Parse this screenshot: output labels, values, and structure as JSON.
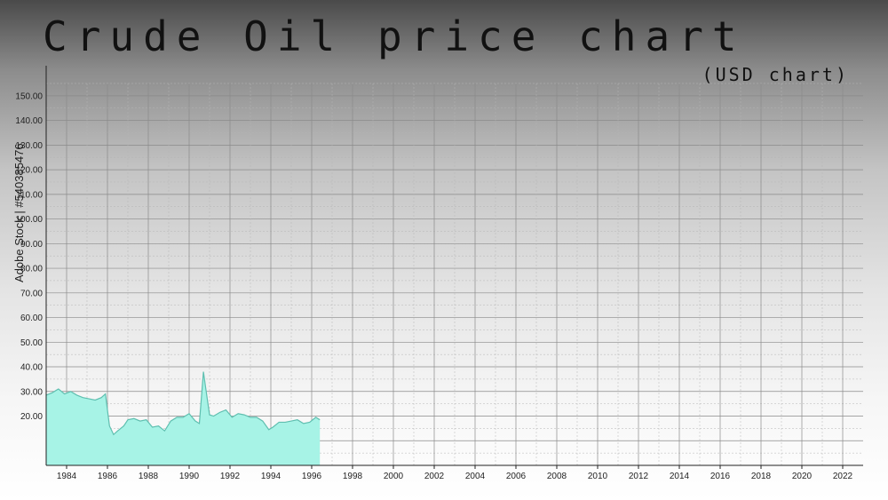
{
  "chart_data": {
    "type": "area",
    "title": "Crude Oil price chart",
    "subtitle": "(USD chart)",
    "xlabel": "",
    "ylabel": "",
    "xlim": [
      1983,
      2023
    ],
    "ylim": [
      0,
      155
    ],
    "x_ticks": [
      "1984",
      "1986",
      "1988",
      "1990",
      "1992",
      "1994",
      "1996",
      "1998",
      "2000",
      "2002",
      "2004",
      "2006",
      "2008",
      "2010",
      "2012",
      "2014",
      "2016",
      "2018",
      "2020",
      "2022"
    ],
    "y_ticks": [
      "150.00",
      "140.00",
      "130.00",
      "120.00",
      "110.00",
      "100.00",
      "90.00",
      "80.00",
      "70.00",
      "60.00",
      "50.00",
      "40.00",
      "30.00",
      "20.00"
    ],
    "grid": true,
    "fill_color": "#a7f3e6",
    "line_color": "#5fbfb0",
    "series": [
      {
        "x": [
          1983.0,
          1983.3,
          1983.6,
          1983.9,
          1984.2,
          1984.5,
          1984.8,
          1985.1,
          1985.4,
          1985.7,
          1985.9,
          1986.1,
          1986.3,
          1986.5,
          1986.8,
          1987.0,
          1987.3,
          1987.6,
          1987.9,
          1988.2,
          1988.5,
          1988.8,
          1989.1,
          1989.4,
          1989.7,
          1990.0,
          1990.3,
          1990.5,
          1990.7,
          1990.8,
          1991.0,
          1991.2,
          1991.5,
          1991.8,
          1992.1,
          1992.4,
          1992.7,
          1993.0,
          1993.3,
          1993.6,
          1993.9,
          1994.1,
          1994.4,
          1994.7,
          1995.0,
          1995.3,
          1995.6,
          1995.9,
          1996.2,
          1996.4
        ],
        "values": [
          28.5,
          29.5,
          31.0,
          29.0,
          30.0,
          28.5,
          27.5,
          27.0,
          26.5,
          27.5,
          29.0,
          16.0,
          12.5,
          14.0,
          16.0,
          18.5,
          19.0,
          18.0,
          18.5,
          15.5,
          16.0,
          14.0,
          18.0,
          19.5,
          19.5,
          21.0,
          18.0,
          17.0,
          38.0,
          32.0,
          20.5,
          20.0,
          21.5,
          22.5,
          19.5,
          21.0,
          20.5,
          19.5,
          19.5,
          18.0,
          14.5,
          15.5,
          17.5,
          17.5,
          18.0,
          18.5,
          17.0,
          17.5,
          19.5,
          18.5
        ]
      }
    ]
  },
  "watermark_text": "Adobe Stock | #540385476"
}
